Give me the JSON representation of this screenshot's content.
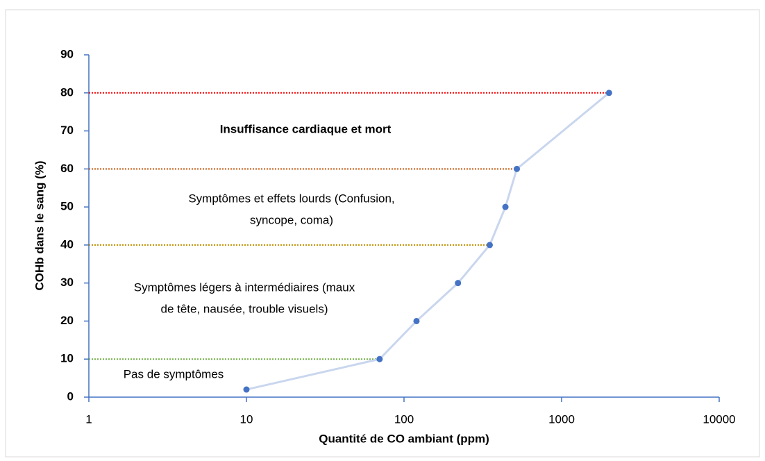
{
  "chart_data": {
    "type": "line",
    "xlabel": "Quantité de CO ambiant (ppm)",
    "ylabel": "COHb dans le sang  (%)",
    "xscale": "log",
    "xlim": [
      1,
      10000
    ],
    "xticks": [
      1,
      10,
      100,
      1000,
      10000
    ],
    "ylim": [
      0,
      90
    ],
    "yticks": [
      0,
      10,
      20,
      30,
      40,
      50,
      60,
      70,
      80,
      90
    ],
    "series": [
      {
        "line_color": "#c9d6ee",
        "color": "#4472c4",
        "x": [
          10,
          70,
          120,
          220,
          350,
          440,
          520,
          2000
        ],
        "values": [
          2,
          10,
          20,
          30,
          40,
          50,
          60,
          80
        ]
      }
    ],
    "thresholds": [
      {
        "y": 80,
        "x_end": 2000,
        "color": "#ff0000"
      },
      {
        "y": 60,
        "x_end": 520,
        "color": "#c55a11"
      },
      {
        "y": 40,
        "x_end": 350,
        "color": "#bf9000"
      },
      {
        "y": 10,
        "x_end": 70,
        "color": "#70ad47"
      }
    ],
    "annotations": [
      {
        "lines": [
          "Insuffisance cardiaque et mort"
        ],
        "color": "#ff0000",
        "bold": true
      },
      {
        "lines": [
          "Symptômes et effets lourds (Confusion,",
          "syncope, coma)"
        ],
        "color": "#c55a11",
        "bold": false
      },
      {
        "lines": [
          "Symptômes légers à intermédiaires (maux",
          "de tête,  nausée, trouble visuels)"
        ],
        "color": "#bf9000",
        "bold": false
      },
      {
        "lines": [
          "Pas de symptômes"
        ],
        "color": "#70ad47",
        "bold": false
      }
    ]
  }
}
